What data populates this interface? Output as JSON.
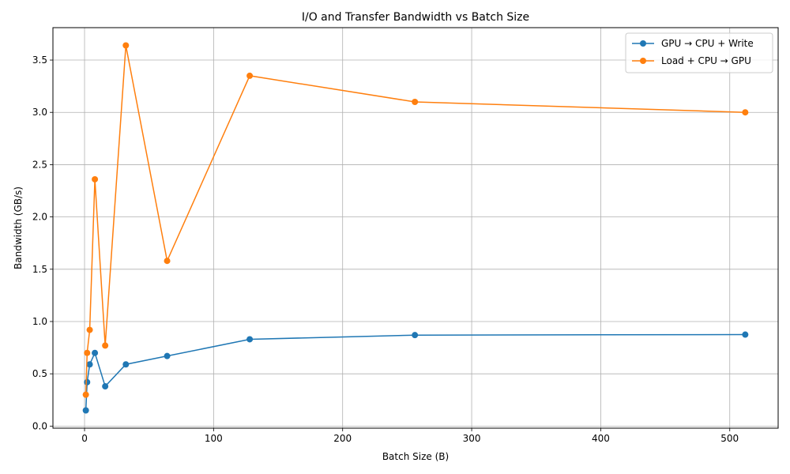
{
  "chart_data": {
    "type": "line",
    "title": "I/O and Transfer Bandwidth vs Batch Size",
    "xlabel": "Batch Size (B)",
    "ylabel": "Bandwidth (GB/s)",
    "xlim": [
      -24.5,
      537.5
    ],
    "ylim": [
      -0.02,
      3.81
    ],
    "xticks": [
      0,
      100,
      200,
      300,
      400,
      500
    ],
    "xtick_labels": [
      "0",
      "100",
      "200",
      "300",
      "400",
      "500"
    ],
    "yticks": [
      0.0,
      0.5,
      1.0,
      1.5,
      2.0,
      2.5,
      3.0,
      3.5
    ],
    "ytick_labels": [
      "0.0",
      "0.5",
      "1.0",
      "1.5",
      "2.0",
      "2.5",
      "3.0",
      "3.5"
    ],
    "grid": true,
    "legend_position": "top-right",
    "x": [
      1,
      2,
      4,
      8,
      16,
      32,
      64,
      128,
      256,
      512
    ],
    "series": [
      {
        "name": "GPU → CPU + Write",
        "color": "#1f77b4",
        "values": [
          0.15,
          0.42,
          0.59,
          0.7,
          0.38,
          0.59,
          0.67,
          0.83,
          0.87,
          0.875
        ]
      },
      {
        "name": "Load + CPU → GPU",
        "color": "#ff7f0e",
        "values": [
          0.3,
          0.7,
          0.92,
          2.36,
          0.77,
          3.64,
          1.58,
          3.35,
          3.1,
          3.0
        ]
      }
    ]
  }
}
